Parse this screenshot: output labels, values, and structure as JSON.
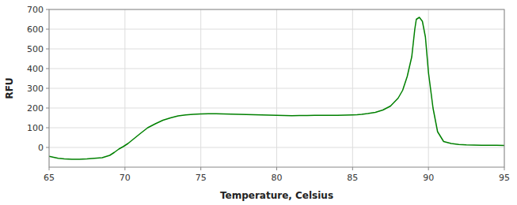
{
  "chart_data": {
    "type": "line",
    "xlabel": "Temperature, Celsius",
    "ylabel": "RFU",
    "xlim": [
      65,
      95
    ],
    "ylim": [
      -100,
      700
    ],
    "xticks": [
      65,
      70,
      75,
      80,
      85,
      90,
      95
    ],
    "yticks": [
      0,
      100,
      200,
      300,
      400,
      500,
      600,
      700
    ],
    "color": "#008000",
    "grid": true,
    "x": [
      65.0,
      65.3,
      65.6,
      66.0,
      66.5,
      67.0,
      67.5,
      68.0,
      68.5,
      69.0,
      69.3,
      69.6,
      69.9,
      70.2,
      70.6,
      71.0,
      71.5,
      72.0,
      72.5,
      73.0,
      73.5,
      74.0,
      74.5,
      75.0,
      75.5,
      76.0,
      76.5,
      77.0,
      77.5,
      78.0,
      78.5,
      79.0,
      79.5,
      80.0,
      80.5,
      81.0,
      81.5,
      82.0,
      82.5,
      83.0,
      83.5,
      84.0,
      84.5,
      85.0,
      85.3,
      85.6,
      86.0,
      86.5,
      87.0,
      87.5,
      88.0,
      88.3,
      88.6,
      88.9,
      89.0,
      89.1,
      89.2,
      89.4,
      89.6,
      89.8,
      90.0,
      90.3,
      90.6,
      91.0,
      91.5,
      92.0,
      92.5,
      93.0,
      93.5,
      94.0,
      94.5,
      95.0
    ],
    "values": [
      -45,
      -50,
      -55,
      -58,
      -60,
      -60,
      -58,
      -55,
      -52,
      -40,
      -25,
      -8,
      5,
      20,
      45,
      70,
      100,
      120,
      138,
      150,
      160,
      165,
      168,
      170,
      171,
      171,
      170,
      169,
      168,
      167,
      166,
      165,
      164,
      163,
      162,
      161,
      162,
      162,
      163,
      163,
      163,
      163,
      164,
      165,
      166,
      168,
      172,
      178,
      190,
      210,
      250,
      290,
      360,
      460,
      530,
      600,
      650,
      660,
      640,
      560,
      380,
      200,
      80,
      30,
      20,
      15,
      13,
      12,
      11,
      11,
      11,
      10
    ]
  }
}
